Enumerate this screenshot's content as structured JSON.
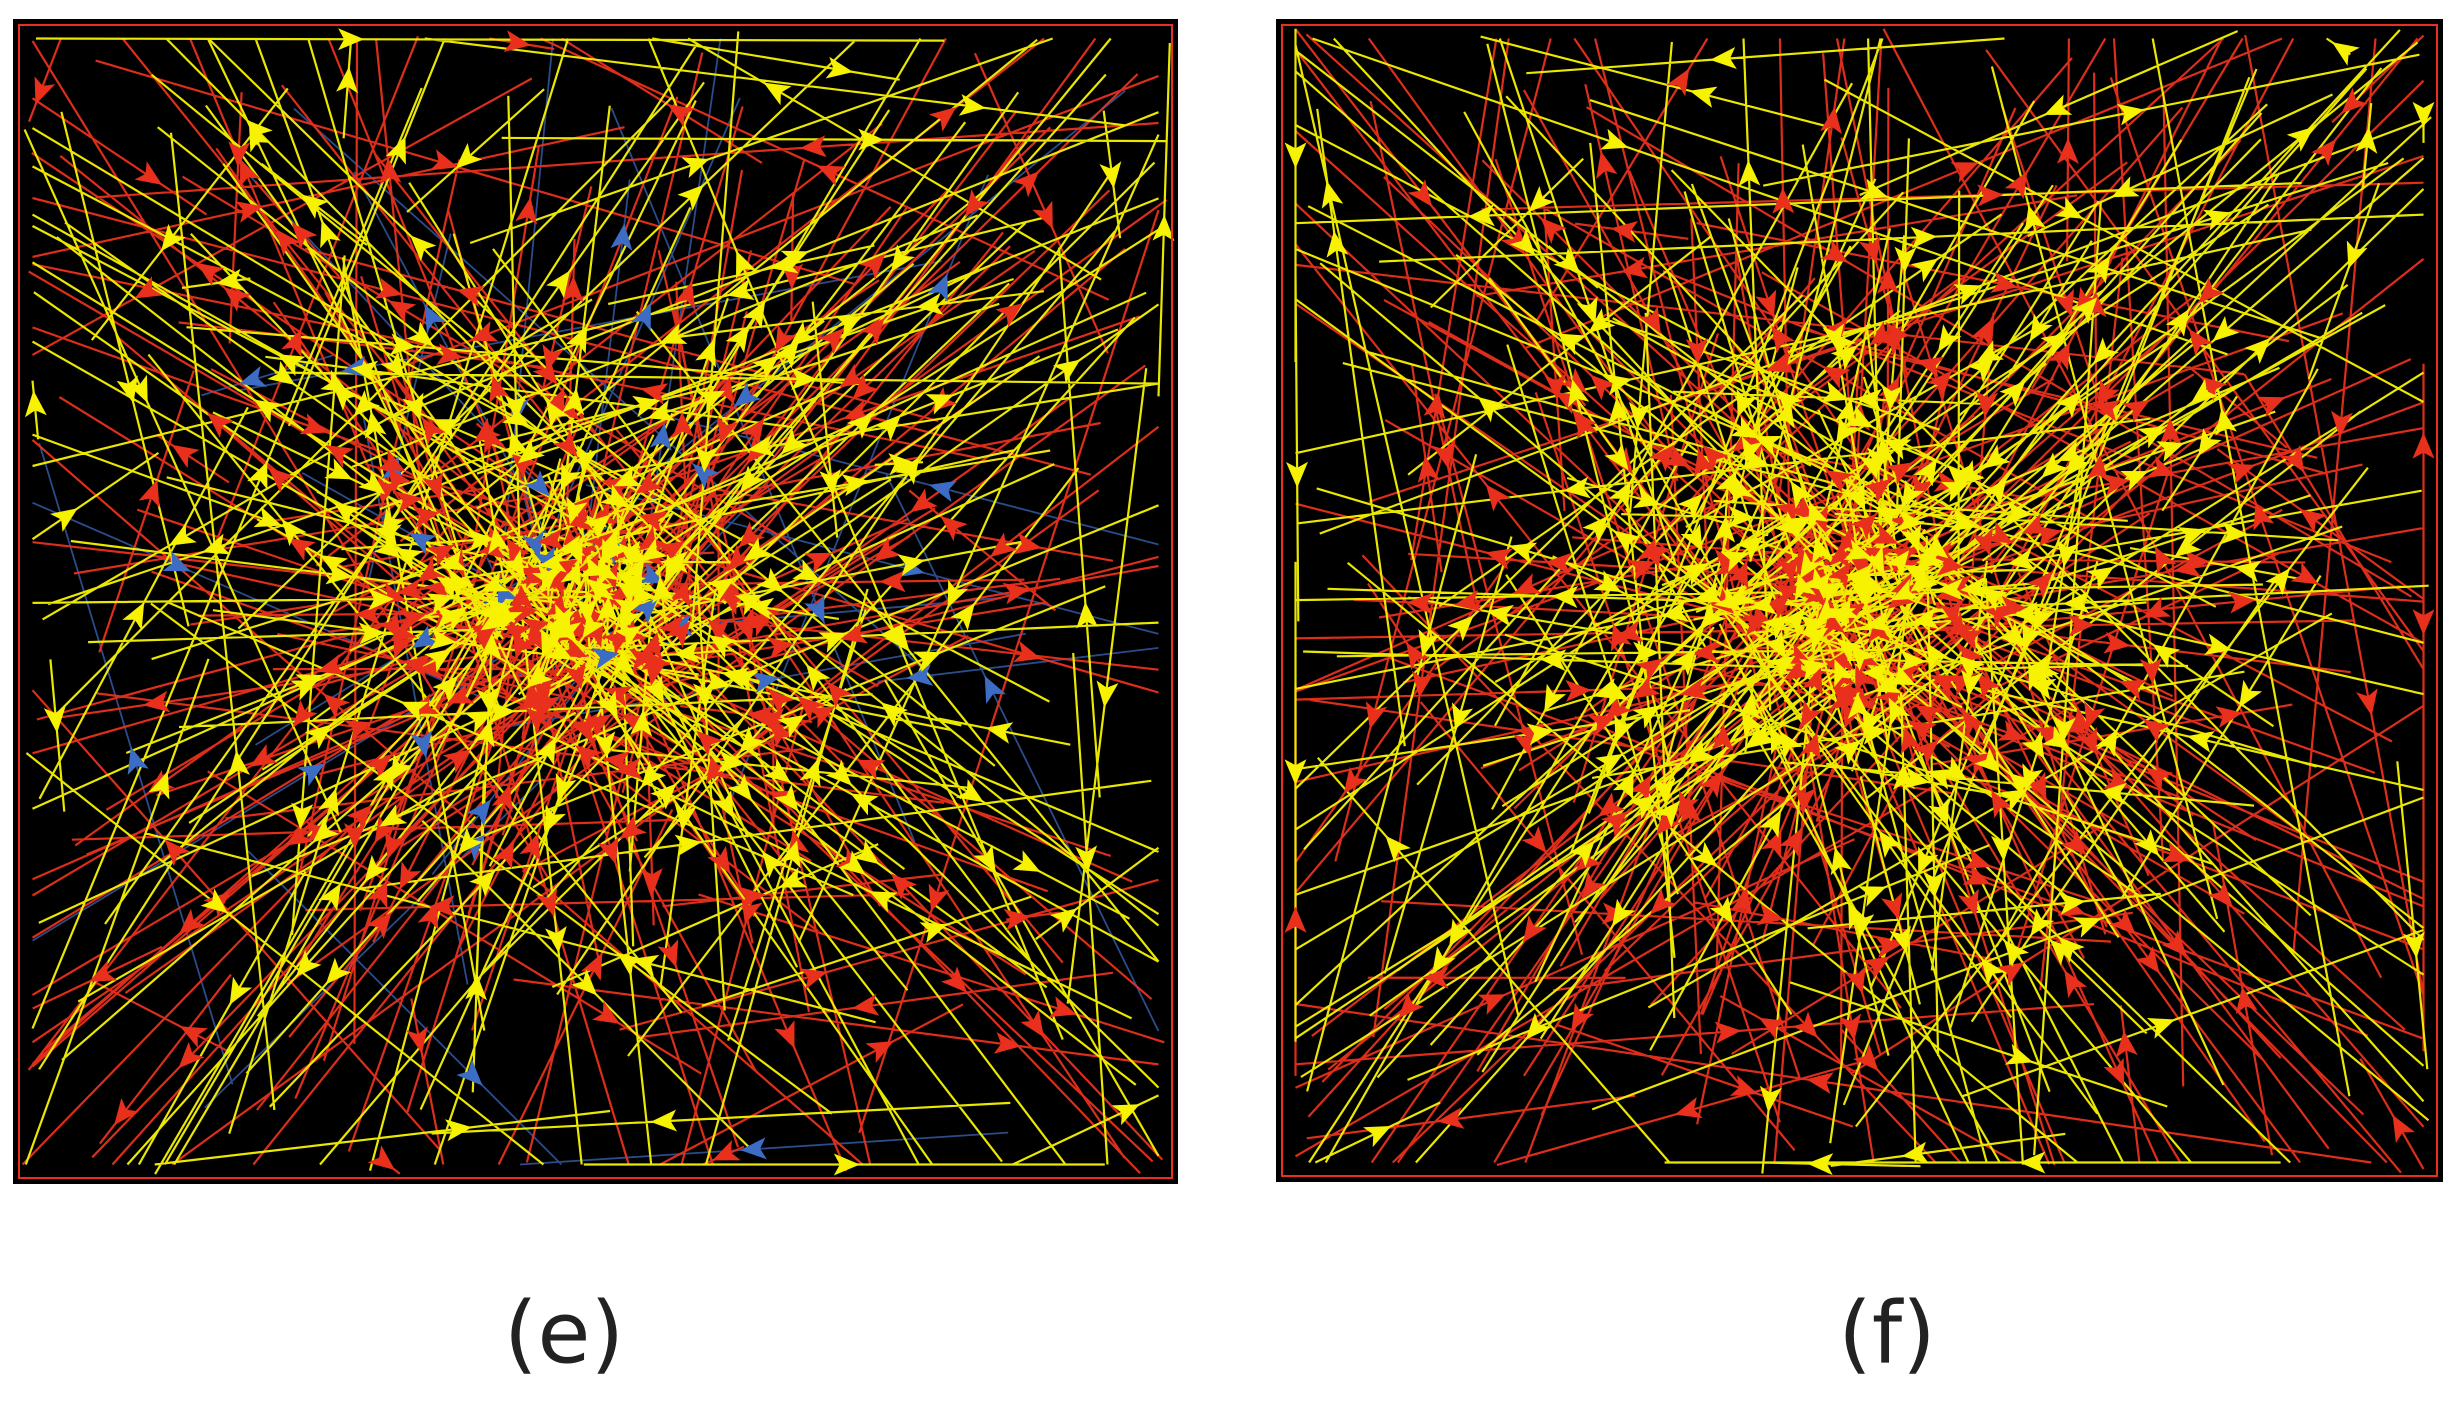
{
  "panels": [
    {
      "label": "(e)"
    },
    {
      "label": "(f)"
    }
  ]
}
